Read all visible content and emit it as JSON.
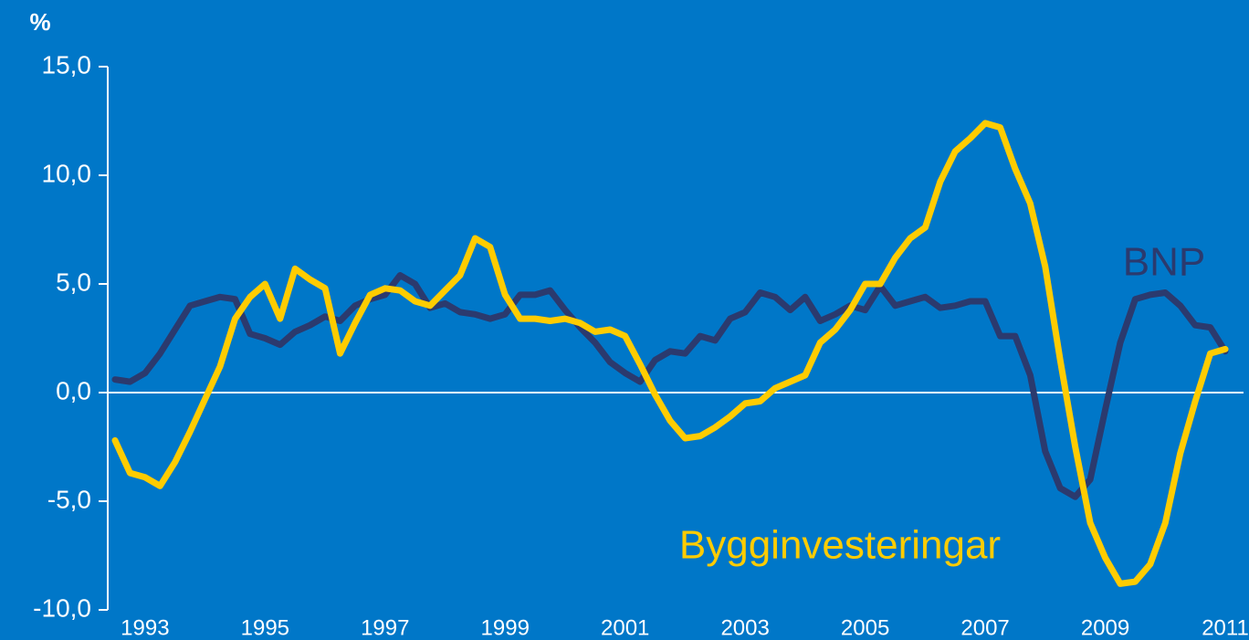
{
  "chart_data": {
    "type": "line",
    "y_unit_label": "%",
    "categories": [
      null,
      null,
      "1993",
      null,
      null,
      null,
      null,
      null,
      null,
      null,
      "1995",
      null,
      null,
      null,
      null,
      null,
      null,
      null,
      "1997",
      null,
      null,
      null,
      null,
      null,
      null,
      null,
      "1999",
      null,
      null,
      null,
      null,
      null,
      null,
      null,
      "2001",
      null,
      null,
      null,
      null,
      null,
      null,
      null,
      "2003",
      null,
      null,
      null,
      null,
      null,
      null,
      null,
      "2005",
      null,
      null,
      null,
      null,
      null,
      null,
      null,
      "2007",
      null,
      null,
      null,
      null,
      null,
      null,
      null,
      "2009",
      null,
      null,
      null,
      null,
      null,
      null,
      null,
      "2011"
    ],
    "series": [
      {
        "name": "BNP",
        "color": "#2b3a6e",
        "values": [
          0.6,
          0.5,
          0.9,
          1.8,
          2.9,
          4.0,
          4.2,
          4.4,
          4.3,
          2.7,
          2.5,
          2.2,
          2.8,
          3.1,
          3.5,
          3.3,
          4.0,
          4.3,
          4.5,
          5.4,
          5.0,
          3.9,
          4.1,
          3.7,
          3.6,
          3.4,
          3.6,
          4.5,
          4.5,
          4.7,
          3.8,
          3.0,
          2.3,
          1.4,
          0.9,
          0.5,
          1.5,
          1.9,
          1.8,
          2.6,
          2.4,
          3.4,
          3.7,
          4.6,
          4.4,
          3.8,
          4.4,
          3.3,
          3.6,
          4.0,
          3.8,
          4.9,
          4.0,
          4.2,
          4.4,
          3.9,
          4.0,
          4.2,
          4.2,
          2.6,
          2.6,
          0.8,
          -2.7,
          -4.4,
          -4.8,
          -4.0,
          -0.8,
          2.3,
          4.3,
          4.5,
          4.6,
          4.0,
          3.1,
          3.0,
          1.9
        ]
      },
      {
        "name": "Bygginvesteringar",
        "color": "#ffcc00",
        "values": [
          -2.2,
          -3.7,
          -3.9,
          -4.3,
          -3.2,
          -1.8,
          -0.3,
          1.2,
          3.4,
          4.4,
          5.0,
          3.4,
          5.7,
          5.2,
          4.8,
          1.8,
          3.2,
          4.5,
          4.8,
          4.7,
          4.2,
          4.0,
          4.7,
          5.4,
          7.1,
          6.7,
          4.5,
          3.4,
          3.4,
          3.3,
          3.4,
          3.2,
          2.8,
          2.9,
          2.6,
          1.3,
          -0.1,
          -1.3,
          -2.1,
          -2.0,
          -1.6,
          -1.1,
          -0.5,
          -0.4,
          0.2,
          0.5,
          0.8,
          2.3,
          2.9,
          3.8,
          5.0,
          5.0,
          6.2,
          7.1,
          7.6,
          9.7,
          11.1,
          11.7,
          12.4,
          12.2,
          10.3,
          8.7,
          5.8,
          1.5,
          -2.5,
          -6.0,
          -7.6,
          -8.8,
          -8.7,
          -7.9,
          -6.0,
          -2.8,
          -0.4,
          1.8,
          2.0
        ]
      }
    ],
    "ylim": [
      -10,
      15
    ],
    "yticks": [
      {
        "value": -10,
        "label": "-10,0"
      },
      {
        "value": -5,
        "label": "-5,0"
      },
      {
        "value": 0,
        "label": "0,0"
      },
      {
        "value": 5,
        "label": "5,0"
      },
      {
        "value": 10,
        "label": "10,0"
      },
      {
        "value": 15,
        "label": "15,0"
      }
    ],
    "zero_line": true
  }
}
